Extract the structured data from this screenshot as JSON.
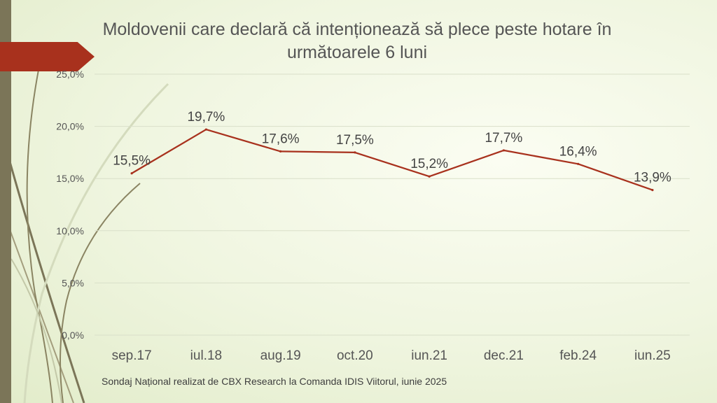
{
  "slide": {
    "title": "Moldovenii care declară că intenționează să plece peste hotare în următoarele 6 luni",
    "source": "Sondaj Național realizat de CBX Research la Comanda IDIS Viitorul, iunie 2025",
    "colors": {
      "line": "#a8311d",
      "accent": "#a8311d",
      "sidebar": "#7b7558",
      "grid": "#d9dfc9"
    }
  },
  "chart_data": {
    "type": "line",
    "title": "Moldovenii care declară că intenționează să plece peste hotare în următoarele 6 luni",
    "categories": [
      "sep.17",
      "iul.18",
      "aug.19",
      "oct.20",
      "iun.21",
      "dec.21",
      "feb.24",
      "iun.25"
    ],
    "series": [
      {
        "values": [
          15.5,
          19.7,
          17.6,
          17.5,
          15.2,
          17.7,
          16.4,
          13.9
        ],
        "labels": [
          "15,5%",
          "19,7%",
          "17,6%",
          "17,5%",
          "15,2%",
          "17,7%",
          "16,4%",
          "13,9%"
        ]
      }
    ],
    "yticks": [
      "0,0%",
      "5,0%",
      "10,0%",
      "15,0%",
      "20,0%",
      "25,0%"
    ],
    "ylim": [
      0,
      25
    ],
    "grid": true,
    "legend": "none"
  }
}
